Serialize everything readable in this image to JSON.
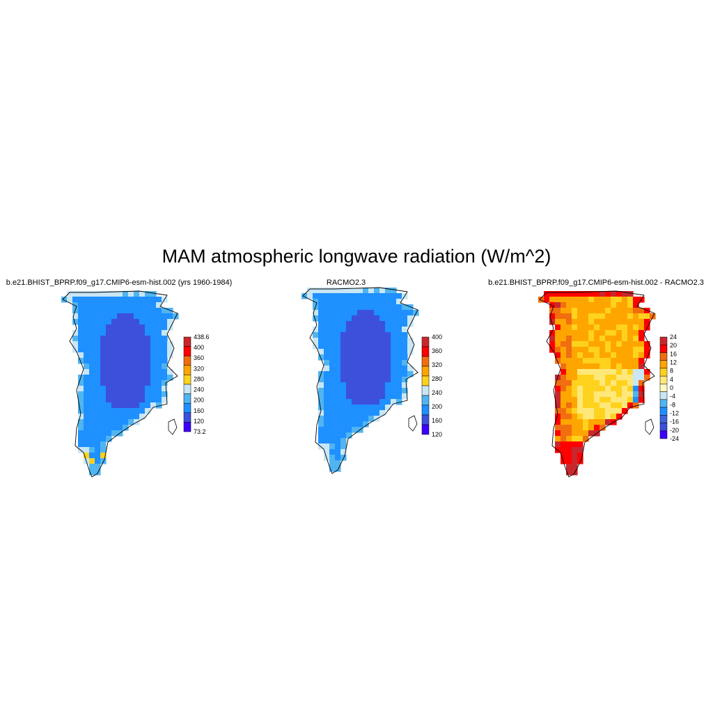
{
  "title": "MAM atmospheric longwave radiation (W/m^2)",
  "panels": [
    {
      "title": "b.e21.BHIST_BPRP.f09_g17.CMIP6-esm-hist.002 (yrs 1960-1984)",
      "colorbar": {
        "labels": [
          "438.6",
          "400",
          "360",
          "320",
          "280",
          "240",
          "200",
          "160",
          "120",
          "73.2"
        ],
        "colors": [
          "#c8282d",
          "#ff0000",
          "#f06e0f",
          "#ffa500",
          "#ffd21e",
          "#c8e6f5",
          "#50b4f0",
          "#1e90ff",
          "#3c50dc",
          "#3c00ff"
        ]
      }
    },
    {
      "title": "RACMO2.3",
      "colorbar": {
        "labels": [
          "400",
          "360",
          "320",
          "280",
          "240",
          "200",
          "160",
          "120"
        ],
        "colors": [
          "#c8282d",
          "#ff0000",
          "#f06e0f",
          "#ffa500",
          "#ffd21e",
          "#c8e6f5",
          "#50b4f0",
          "#1e90ff",
          "#3c50dc",
          "#3c00ff"
        ]
      }
    },
    {
      "title": "b.e21.BHIST_BPRP.f09_g17.CMIP6-esm-hist.002 - RACMO2.3",
      "colorbar": {
        "labels": [
          "24",
          "20",
          "16",
          "12",
          "8",
          "4",
          "0",
          "-4",
          "-8",
          "-12",
          "-16",
          "-20",
          "-24"
        ],
        "colors": [
          "#c8282d",
          "#ff0000",
          "#f06e0f",
          "#ffa500",
          "#ffd21e",
          "#ffe87a",
          "#fff7be",
          "#c8e6f5",
          "#50b4f0",
          "#1e90ff",
          "#3c64dc",
          "#3c50dc",
          "#3c00ff"
        ]
      }
    }
  ]
}
